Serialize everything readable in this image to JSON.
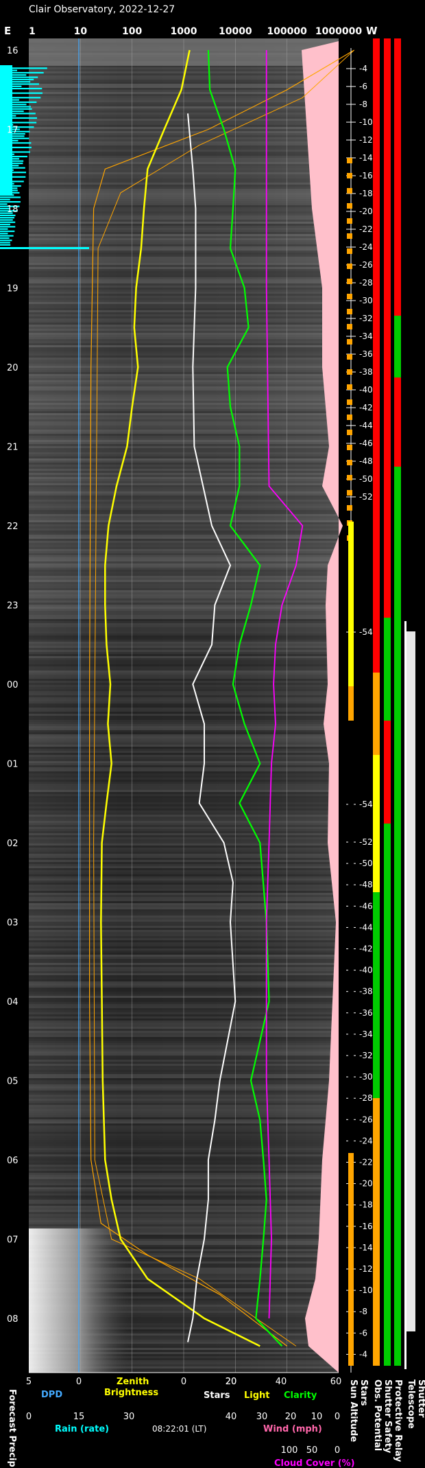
{
  "title": "Clair Observatory, 2022-12-27",
  "top_axis": {
    "left_label": "E",
    "right_label": "W",
    "ticks": [
      "1",
      "10",
      "100",
      "1000",
      "10000",
      "100000",
      "1000000"
    ]
  },
  "hour_labels": [
    "16",
    "17",
    "18",
    "19",
    "20",
    "21",
    "22",
    "23",
    "00",
    "01",
    "02",
    "03",
    "04",
    "05",
    "06",
    "07",
    "08"
  ],
  "sun_altitude_labels": [
    "-4",
    "-6",
    "-8",
    "-10",
    "-12",
    "-14",
    "-16",
    "-18",
    "-20",
    "-22",
    "-24",
    "-26",
    "-28",
    "-30",
    "-32",
    "-34",
    "-36",
    "-38",
    "-40",
    "-42",
    "-44",
    "-46",
    "-48",
    "-50",
    "-52",
    "-54",
    "-54",
    "-52",
    "-50",
    "-48",
    "-46",
    "-44",
    "-42",
    "-40",
    "-38",
    "-36",
    "-34",
    "-32",
    "-30",
    "-28",
    "-26",
    "-24",
    "-22",
    "-20",
    "-18",
    "-16",
    "-14",
    "-12",
    "-10",
    "-8",
    "-6",
    "-4"
  ],
  "bottom_axes": {
    "row1_ticks": [
      "5",
      "0",
      "20",
      "0",
      "20",
      "40",
      "60"
    ],
    "dpd_label": "DPD",
    "zenith_label_1": "Zenith",
    "zenith_label_2": "Brightness",
    "stars_label": "Stars",
    "light_label": "Light",
    "clarity_label": "Clarity",
    "row2_ticks": [
      "0",
      "15",
      "30",
      "40",
      "30",
      "20",
      "10",
      "0"
    ],
    "rain_label": "Rain (rate)",
    "time": "08:22:01 (LT)",
    "wind_label": "Wind (mph)",
    "row3_ticks": [
      "100",
      "50",
      "0"
    ],
    "cloud_label": "Cloud Cover (%)"
  },
  "vertical_labels": [
    "Forecast Precip.",
    "Sun Altitude",
    "Stars",
    "Obs. Potential",
    "Shutter Safety",
    "Protective Relay",
    "Telescope",
    "Shutter"
  ],
  "colors": {
    "zenith": "#ffff00",
    "model": "#ffa500",
    "stars": "#ffffff",
    "clarity": "#00ff00",
    "cloud": "#ff00ff",
    "rain": "#00ffff",
    "dpd": "#44aaff",
    "pink_fill": "#ffc0cb",
    "green": "#00cc00",
    "red": "#ff0000",
    "yellow": "#ffff00",
    "orange": "#ffa500"
  },
  "chart_data": {
    "type": "line",
    "x_axis": "log scale 1 to 1000000",
    "time_range": [
      "16:00",
      "08:22"
    ],
    "series": [
      {
        "name": "Zenith Brightness",
        "points": [
          [
            16.0,
            1300
          ],
          [
            16.5,
            900
          ],
          [
            17.0,
            420
          ],
          [
            17.5,
            200
          ],
          [
            18.0,
            170
          ],
          [
            18.5,
            150
          ],
          [
            19.0,
            120
          ],
          [
            19.5,
            110
          ],
          [
            20.0,
            130
          ],
          [
            20.5,
            100
          ],
          [
            21.0,
            80
          ],
          [
            21.5,
            50
          ],
          [
            22.0,
            35
          ],
          [
            22.5,
            30
          ],
          [
            23.0,
            30
          ],
          [
            23.5,
            32
          ],
          [
            0.0,
            38
          ],
          [
            0.5,
            34
          ],
          [
            1.0,
            40
          ],
          [
            1.5,
            32
          ],
          [
            2.0,
            26
          ],
          [
            3.0,
            25
          ],
          [
            4.0,
            26
          ],
          [
            5.0,
            27
          ],
          [
            6.0,
            30
          ],
          [
            6.5,
            40
          ],
          [
            7.0,
            60
          ],
          [
            7.5,
            200
          ],
          [
            8.0,
            2500
          ],
          [
            8.35,
            30000
          ]
        ]
      },
      {
        "name": "Stars",
        "points": [
          [
            16.8,
            1200
          ],
          [
            17.5,
            1500
          ],
          [
            18.0,
            1700
          ],
          [
            19.0,
            1700
          ],
          [
            20.0,
            1500
          ],
          [
            21.0,
            1600
          ],
          [
            22.0,
            3500
          ],
          [
            22.5,
            8000
          ],
          [
            23.0,
            4000
          ],
          [
            23.5,
            3500
          ],
          [
            0.0,
            1500
          ],
          [
            0.5,
            2500
          ],
          [
            1.0,
            2500
          ],
          [
            1.5,
            2000
          ],
          [
            2.0,
            6000
          ],
          [
            2.5,
            9000
          ],
          [
            3.0,
            8000
          ],
          [
            4.0,
            10000
          ],
          [
            5.0,
            5000
          ],
          [
            5.5,
            4000
          ],
          [
            6.0,
            3000
          ],
          [
            6.5,
            3000
          ],
          [
            7.0,
            2500
          ],
          [
            7.5,
            1800
          ],
          [
            8.0,
            1500
          ],
          [
            8.3,
            1200
          ]
        ]
      },
      {
        "name": "Clarity",
        "points": [
          [
            16.0,
            3000
          ],
          [
            16.5,
            3200
          ],
          [
            17.0,
            6000
          ],
          [
            17.5,
            10000
          ],
          [
            18.0,
            9000
          ],
          [
            18.5,
            8000
          ],
          [
            19.0,
            15000
          ],
          [
            19.5,
            18000
          ],
          [
            20.0,
            7000
          ],
          [
            20.5,
            8000
          ],
          [
            21.0,
            12000
          ],
          [
            21.5,
            12000
          ],
          [
            22.0,
            8000
          ],
          [
            22.5,
            30000
          ],
          [
            23.0,
            20000
          ],
          [
            23.5,
            12000
          ],
          [
            0.0,
            9000
          ],
          [
            0.5,
            15000
          ],
          [
            1.0,
            30000
          ],
          [
            1.5,
            12000
          ],
          [
            2.0,
            30000
          ],
          [
            3.0,
            40000
          ],
          [
            4.0,
            45000
          ],
          [
            5.0,
            20000
          ],
          [
            5.5,
            30000
          ],
          [
            6.0,
            35000
          ],
          [
            6.5,
            40000
          ],
          [
            7.0,
            35000
          ],
          [
            7.5,
            30000
          ],
          [
            8.0,
            25000
          ],
          [
            8.35,
            80000
          ]
        ]
      },
      {
        "name": "Cloud Cover",
        "points": [
          [
            16.0,
            40000
          ],
          [
            19.0,
            40000
          ],
          [
            21.5,
            45000
          ],
          [
            22.0,
            200000
          ],
          [
            22.5,
            150000
          ],
          [
            23.0,
            80000
          ],
          [
            23.5,
            60000
          ],
          [
            0.0,
            55000
          ],
          [
            0.5,
            60000
          ],
          [
            1.0,
            50000
          ],
          [
            2.0,
            45000
          ],
          [
            3.0,
            40000
          ],
          [
            4.0,
            40000
          ],
          [
            5.0,
            40000
          ],
          [
            6.0,
            45000
          ],
          [
            7.0,
            50000
          ],
          [
            8.0,
            45000
          ]
        ]
      }
    ]
  }
}
